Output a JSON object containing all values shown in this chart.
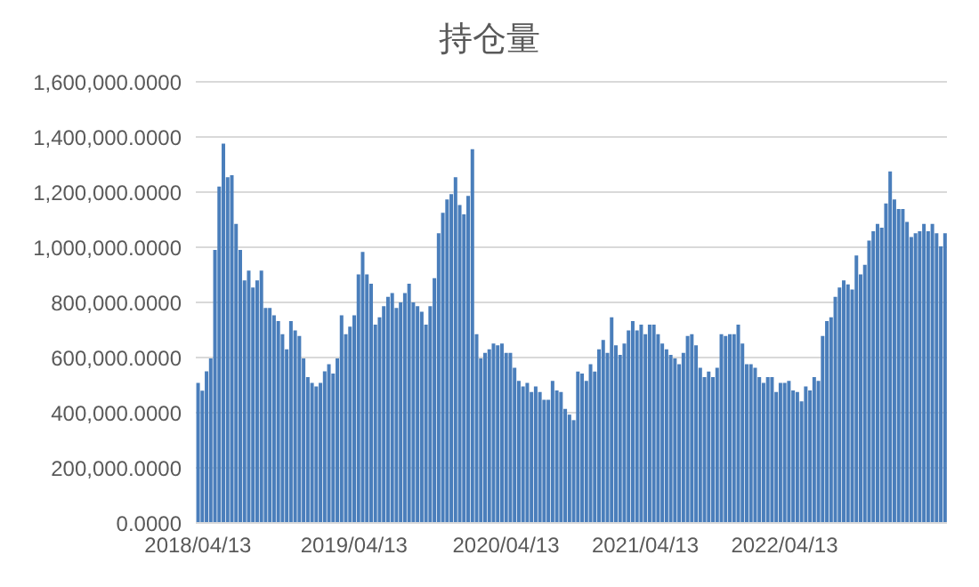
{
  "chart_data": {
    "type": "bar",
    "title": "持仓量",
    "categories": [
      "2018/04/13",
      null,
      null,
      null,
      null,
      null,
      null,
      null,
      null,
      null,
      null,
      null,
      null,
      null,
      null,
      null,
      null,
      null,
      null,
      null,
      null,
      null,
      null,
      null,
      null,
      null,
      null,
      null,
      null,
      null,
      null,
      null,
      null,
      null,
      null,
      null,
      null,
      "2019/04/13",
      null,
      null,
      null,
      null,
      null,
      null,
      null,
      null,
      null,
      null,
      null,
      null,
      null,
      null,
      null,
      null,
      null,
      null,
      null,
      null,
      null,
      null,
      null,
      null,
      null,
      null,
      null,
      null,
      null,
      null,
      null,
      null,
      null,
      null,
      null,
      "2020/04/13",
      null,
      null,
      null,
      null,
      null,
      null,
      null,
      null,
      null,
      null,
      null,
      null,
      null,
      null,
      null,
      null,
      null,
      null,
      null,
      null,
      null,
      null,
      null,
      null,
      null,
      null,
      null,
      null,
      null,
      null,
      null,
      null,
      "2021/04/13",
      null,
      null,
      null,
      null,
      null,
      null,
      null,
      null,
      null,
      null,
      null,
      null,
      null,
      null,
      null,
      null,
      null,
      null,
      null,
      null,
      null,
      null,
      null,
      null,
      null,
      null,
      null,
      null,
      null,
      null,
      null,
      null,
      "2022/04/13",
      null,
      null,
      null,
      null,
      null,
      null,
      null,
      null,
      null,
      null,
      null,
      null,
      null,
      null,
      null,
      null,
      null,
      null,
      null,
      null,
      null,
      null,
      null,
      null,
      null,
      null,
      null,
      null,
      null,
      null,
      null,
      null,
      null,
      null,
      null,
      null,
      null,
      null
    ],
    "values": [
      508000,
      480000,
      550000,
      597000,
      990000,
      1220000,
      1376000,
      1254000,
      1261000,
      1085000,
      990000,
      880000,
      915000,
      854000,
      880000,
      915000,
      780000,
      780000,
      753000,
      732000,
      685000,
      630000,
      732000,
      698000,
      678000,
      597000,
      529000,
      508000,
      495000,
      508000,
      550000,
      576000,
      542000,
      597000,
      753000,
      685000,
      712000,
      753000,
      902000,
      983000,
      902000,
      868000,
      719000,
      746000,
      786000,
      820000,
      834000,
      780000,
      800000,
      834000,
      868000,
      800000,
      786000,
      766000,
      719000,
      786000,
      888000,
      1051000,
      1125000,
      1173000,
      1193000,
      1254000,
      1153000,
      1119000,
      1186000,
      1356000,
      685000,
      597000,
      617000,
      630000,
      651000,
      644000,
      651000,
      617000,
      617000,
      563000,
      515000,
      495000,
      508000,
      475000,
      495000,
      475000,
      447000,
      447000,
      515000,
      481000,
      475000,
      414000,
      393000,
      373000,
      549000,
      542000,
      515000,
      576000,
      549000,
      630000,
      664000,
      617000,
      746000,
      644000,
      610000,
      651000,
      698000,
      732000,
      698000,
      719000,
      685000,
      719000,
      719000,
      685000,
      651000,
      630000,
      610000,
      597000,
      576000,
      617000,
      678000,
      685000,
      644000,
      563000,
      529000,
      549000,
      529000,
      563000,
      685000,
      678000,
      685000,
      685000,
      719000,
      651000,
      576000,
      576000,
      563000,
      529000,
      508000,
      529000,
      529000,
      475000,
      508000,
      508000,
      515000,
      481000,
      475000,
      441000,
      495000,
      481000,
      529000,
      515000,
      678000,
      732000,
      746000,
      820000,
      854000,
      880000,
      865000,
      847000,
      970000,
      902000,
      936000,
      1024000,
      1058000,
      1085000,
      1071000,
      1159000,
      1275000,
      1173000,
      1139000,
      1139000,
      1092000,
      1037000,
      1051000,
      1058000,
      1085000,
      1058000,
      1085000,
      1051000,
      1003000,
      1051000
    ],
    "color": "#4a7ebb",
    "ylim": [
      0,
      1600000
    ],
    "yticks": [
      {
        "value": 0,
        "label": "0.0000"
      },
      {
        "value": 200000,
        "label": "200,000.0000"
      },
      {
        "value": 400000,
        "label": "400,000.0000"
      },
      {
        "value": 600000,
        "label": "600,000.0000"
      },
      {
        "value": 800000,
        "label": "800,000.0000"
      },
      {
        "value": 1000000,
        "label": "1,000,000.0000"
      },
      {
        "value": 1200000,
        "label": "1,200,000.0000"
      },
      {
        "value": 1400000,
        "label": "1,400,000.0000"
      },
      {
        "value": 1600000,
        "label": "1,600,000.0000"
      }
    ],
    "grid": "y"
  }
}
